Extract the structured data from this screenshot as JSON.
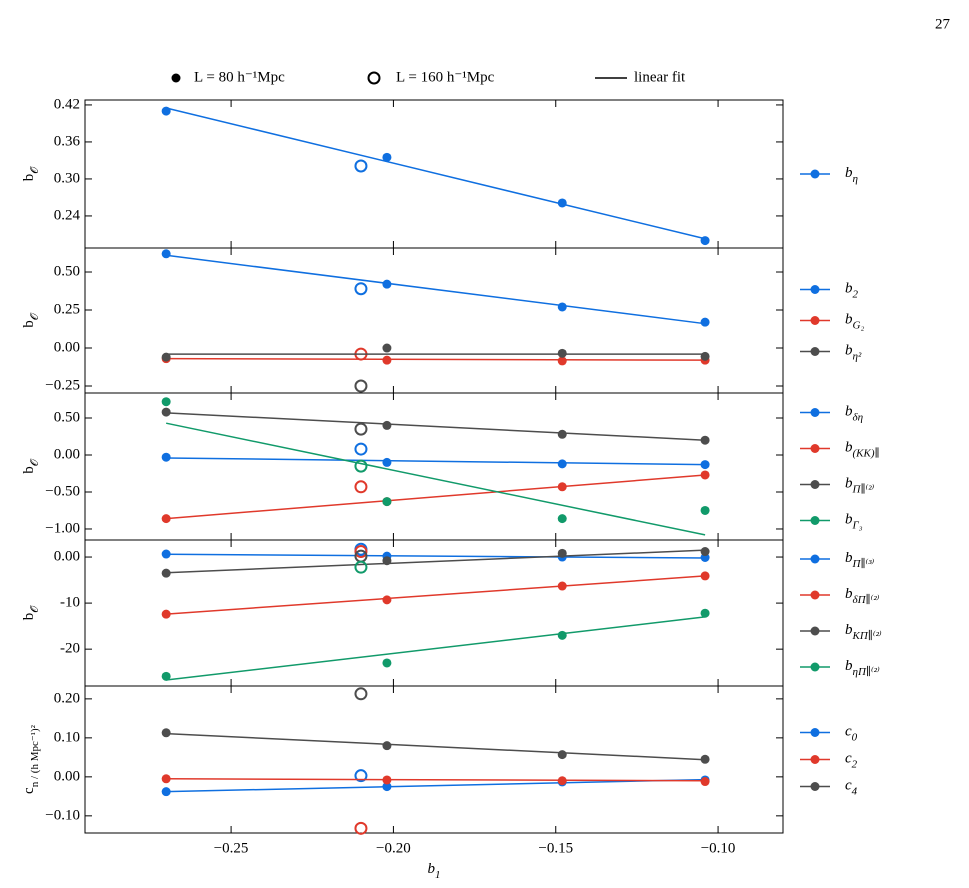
{
  "page_number": "27",
  "legend": {
    "items": [
      "L = 80 h⁻¹Mpc",
      "L = 160 h⁻¹Mpc",
      "linear fit"
    ]
  },
  "x_axis": {
    "label": "b_1",
    "xlim": [
      -0.295,
      -0.08
    ],
    "xticks": [
      {
        "value": -0.25,
        "label": "−0.25"
      },
      {
        "value": -0.2,
        "label": "−0.20"
      },
      {
        "value": -0.15,
        "label": "−0.15"
      },
      {
        "value": -0.1,
        "label": "−0.10"
      }
    ]
  },
  "chart_data": [
    {
      "type": "scatter",
      "ylabel": "b_𝒪",
      "ylim": [
        0.188,
        0.428
      ],
      "yticks": [
        0.24,
        {
          "value": 0.3,
          "label": "0.30"
        },
        0.36,
        0.42
      ],
      "x": [
        -0.27,
        -0.202,
        -0.148,
        -0.104
      ],
      "open_x": -0.21,
      "series": [
        {
          "name": "b_η",
          "color": "#0f6fe0",
          "values": [
            0.41,
            0.335,
            0.261,
            0.2
          ],
          "open_value": 0.321,
          "fit": [
            0.415,
            0.203
          ]
        }
      ]
    },
    {
      "type": "scatter",
      "ylabel": "b_𝒪",
      "ylim": [
        -0.296,
        0.658
      ],
      "yticks": [
        {
          "value": -0.25,
          "label": "−0.25"
        },
        {
          "value": 0,
          "label": "0.00"
        },
        0.25,
        {
          "value": 0.5,
          "label": "0.50"
        }
      ],
      "x": [
        -0.27,
        -0.202,
        -0.148,
        -0.104
      ],
      "open_x": -0.21,
      "series": [
        {
          "name": "b_2",
          "color": "#0f6fe0",
          "values": [
            0.62,
            0.42,
            0.27,
            0.17
          ],
          "open_value": 0.39,
          "fit": [
            0.61,
            0.16
          ]
        },
        {
          "name": "b_G₂",
          "color": "#e0392b",
          "values": [
            -0.07,
            -0.08,
            -0.085,
            -0.08
          ],
          "open_value": -0.04,
          "fit": [
            -0.07,
            -0.08
          ]
        },
        {
          "name": "b_η²",
          "color": "#4d4d4d",
          "values": [
            -0.06,
            0.0,
            -0.035,
            -0.055
          ],
          "open_value": -0.25,
          "fit": [
            -0.04,
            -0.04
          ]
        }
      ]
    },
    {
      "type": "scatter",
      "ylabel": "b_𝒪",
      "ylim": [
        -1.149,
        0.838
      ],
      "yticks": [
        {
          "value": -1,
          "label": "−1.00"
        },
        {
          "value": -0.5,
          "label": "−0.50"
        },
        {
          "value": 0,
          "label": "0.00"
        },
        {
          "value": 0.5,
          "label": "0.50"
        }
      ],
      "x": [
        -0.27,
        -0.202,
        -0.148,
        -0.104
      ],
      "open_x": -0.21,
      "series": [
        {
          "name": "b_δη",
          "color": "#0f6fe0",
          "values": [
            -0.03,
            -0.1,
            -0.12,
            -0.13
          ],
          "open_value": 0.08,
          "fit": [
            -0.04,
            -0.13
          ]
        },
        {
          "name": "b_(KK)∥",
          "color": "#e0392b",
          "values": [
            -0.86,
            -0.63,
            -0.43,
            -0.27
          ],
          "open_value": -0.43,
          "fit": [
            -0.86,
            -0.27
          ]
        },
        {
          "name": "b_Π∥⁽²⁾",
          "color": "#4d4d4d",
          "values": [
            0.58,
            0.4,
            0.28,
            0.2
          ],
          "open_value": 0.35,
          "fit": [
            0.57,
            0.2
          ]
        },
        {
          "name": "b_Γ₃",
          "color": "#119a6a",
          "values": [
            0.72,
            -0.63,
            -0.86,
            -0.75
          ],
          "open_value": -0.15,
          "fit": [
            0.43,
            -1.08
          ]
        }
      ]
    },
    {
      "type": "scatter",
      "ylabel": "b_𝒪",
      "ylim": [
        -28,
        3.7
      ],
      "yticks": [
        -20,
        -10,
        {
          "value": 0,
          "label": "0.00"
        }
      ],
      "x": [
        -0.27,
        -0.202,
        -0.148,
        -0.104
      ],
      "open_x": -0.21,
      "series": [
        {
          "name": "b_Π∥⁽³⁾",
          "color": "#0f6fe0",
          "values": [
            0.65,
            0.2,
            0.0,
            -0.1
          ],
          "open_value": 1.7,
          "fit": [
            0.6,
            -0.2
          ]
        },
        {
          "name": "b_δΠ∥⁽²⁾",
          "color": "#e0392b",
          "values": [
            -12.4,
            -9.3,
            -6.3,
            -4.1
          ],
          "open_value": 1.2,
          "fit": [
            -12.4,
            -4.1
          ]
        },
        {
          "name": "b_KΠ∥⁽²⁾",
          "color": "#4d4d4d",
          "values": [
            -3.5,
            -0.8,
            0.8,
            1.2
          ],
          "open_value": 0.2,
          "fit": [
            -3.4,
            1.5
          ]
        },
        {
          "name": "b_ηΠ∥⁽²⁾",
          "color": "#119a6a",
          "values": [
            -25.9,
            -23.0,
            -17.0,
            -12.2
          ],
          "open_value": -2.2,
          "fit": [
            -26.7,
            -13.0
          ]
        }
      ]
    },
    {
      "type": "scatter",
      "ylabel": "c_n / (h Mpc⁻¹)²",
      "ylim": [
        -0.144,
        0.233
      ],
      "yticks": [
        {
          "value": -0.1,
          "label": "−0.10"
        },
        {
          "value": 0,
          "label": "0.00"
        },
        {
          "value": 0.1,
          "label": "0.10"
        },
        {
          "value": 0.2,
          "label": "0.20"
        }
      ],
      "x": [
        -0.27,
        -0.202,
        -0.148,
        -0.104
      ],
      "open_x": -0.21,
      "series": [
        {
          "name": "c_0",
          "color": "#0f6fe0",
          "values": [
            -0.038,
            -0.025,
            -0.013,
            -0.008
          ],
          "open_value": 0.003,
          "fit": [
            -0.038,
            -0.007
          ]
        },
        {
          "name": "c_2",
          "color": "#e0392b",
          "values": [
            -0.005,
            -0.008,
            -0.01,
            -0.012
          ],
          "open_value": -0.132,
          "fit": [
            -0.005,
            -0.01
          ]
        },
        {
          "name": "c_4",
          "color": "#4d4d4d",
          "values": [
            0.113,
            0.08,
            0.057,
            0.045
          ],
          "open_value": 0.213,
          "fit": [
            0.111,
            0.044
          ]
        }
      ]
    }
  ]
}
